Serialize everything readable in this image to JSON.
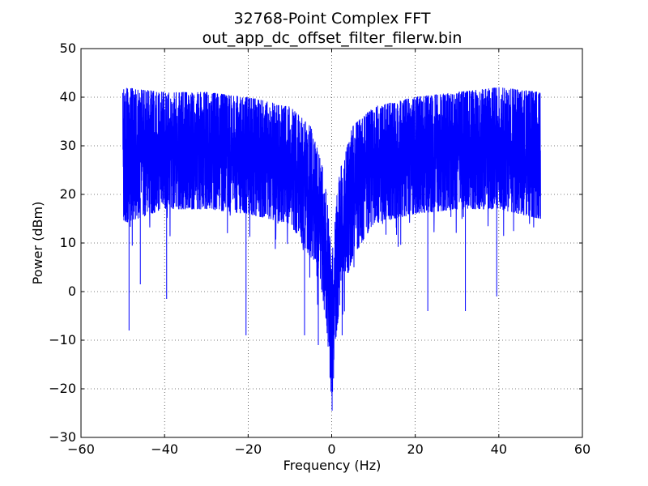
{
  "chart_data": {
    "type": "line",
    "title": "32768-Point Complex FFT",
    "subtitle": "out_app_dc_offset_filter_filerw.bin",
    "xlabel": "Frequency (Hz)",
    "ylabel": "Power (dBm)",
    "xlim": [
      -60,
      60
    ],
    "ylim": [
      -30,
      50
    ],
    "x_ticks": [
      -60,
      -40,
      -20,
      0,
      20,
      40,
      60
    ],
    "x_tick_labels": [
      "−60",
      "−40",
      "−20",
      "0",
      "20",
      "40",
      "60"
    ],
    "y_ticks": [
      -30,
      -20,
      -10,
      0,
      10,
      20,
      30,
      40,
      50
    ],
    "y_tick_labels": [
      "−30",
      "−20",
      "−10",
      "0",
      "10",
      "20",
      "30",
      "40",
      "50"
    ],
    "grid": true,
    "legend": "none",
    "series": [
      {
        "color": "#0000ff",
        "points": 32768,
        "x_range": [
          -50,
          50
        ],
        "envelope": {
          "x": [
            -50,
            -40,
            -30,
            -20,
            -10,
            -5,
            -2,
            -1,
            0,
            1,
            2,
            5,
            10,
            20,
            30,
            40,
            50
          ],
          "max": [
            42,
            41,
            41,
            40,
            38,
            34,
            25,
            18,
            6,
            18,
            25,
            34,
            38,
            40,
            41,
            42,
            41
          ],
          "min": [
            14,
            17,
            17,
            16,
            14,
            7,
            -2,
            -10,
            -24,
            -10,
            -2,
            7,
            14,
            16,
            17,
            17,
            15
          ],
          "outliers": [
            {
              "x": -48.5,
              "y": -8
            },
            {
              "x": -45.8,
              "y": 1.5
            },
            {
              "x": -39.5,
              "y": -1.5
            },
            {
              "x": -20.5,
              "y": -9
            },
            {
              "x": -6.5,
              "y": -9
            },
            {
              "x": -3.2,
              "y": -11
            },
            {
              "x": 0.1,
              "y": -24.5
            },
            {
              "x": 2.5,
              "y": -9
            },
            {
              "x": 23,
              "y": -4
            },
            {
              "x": 32,
              "y": -4
            },
            {
              "x": 39.5,
              "y": -1
            }
          ]
        }
      }
    ]
  }
}
